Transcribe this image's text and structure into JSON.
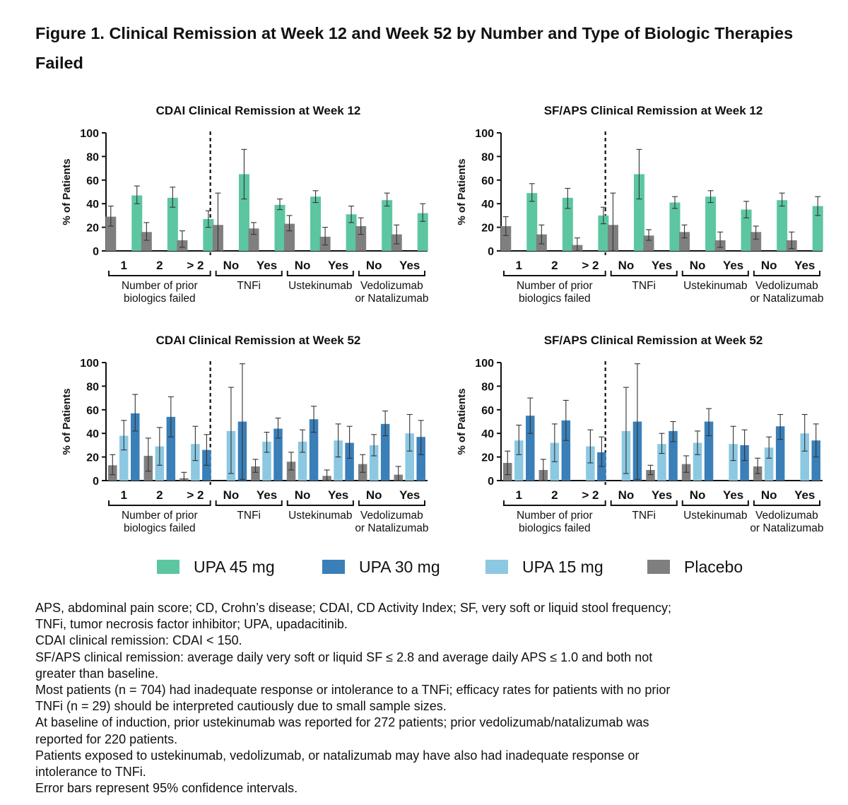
{
  "figure_title": "Figure 1. Clinical Remission at Week 12 and Week 52 by Number and Type of Biologic Therapies Failed",
  "colors": {
    "UPA 45 mg": "#5cc6a0",
    "UPA 30 mg": "#3a7fb8",
    "UPA 15 mg": "#8cc8e2",
    "Placebo": "#7f7f7f"
  },
  "legend": [
    "UPA 45 mg",
    "UPA 30 mg",
    "UPA 15 mg",
    "Placebo"
  ],
  "footnotes": [
    "APS, abdominal pain score; CD, Crohn’s disease; CDAI, CD Activity Index; SF, very soft or liquid stool frequency;",
    "TNFi, tumor necrosis factor inhibitor; UPA, upadacitinib.",
    "CDAI clinical remission: CDAI < 150.",
    "SF/APS clinical remission: average daily very soft or liquid SF ≤ 2.8 and average daily APS ≤ 1.0 and both not",
    "greater than baseline.",
    "Most patients (n = 704) had inadequate response or intolerance to a TNFi; efficacy rates for patients with no prior",
    "TNFi (n = 29) should be interpreted cautiously due to small sample sizes.",
    "At baseline of induction, prior ustekinumab was reported for 272 patients; prior vedolizumab/natalizumab was",
    "reported for 220 patients.",
    "Patients exposed to ustekinumab, vedolizumab, or natalizumab may have also had inadequate response or",
    "intolerance to TNFi.",
    "Error bars represent 95% confidence intervals."
  ],
  "chart_data": [
    {
      "type": "bar",
      "title": "CDAI Clinical Remission at Week 12",
      "ylabel": "% of Patients",
      "ylim": [
        0,
        100
      ],
      "yticks": [
        0,
        20,
        40,
        60,
        80,
        100
      ],
      "categories": [
        "1",
        "2",
        "> 2",
        "No",
        "Yes",
        "No",
        "Yes",
        "No",
        "Yes"
      ],
      "groups": [
        {
          "label": "Number of prior biologics failed",
          "lines": [
            "Number of prior",
            "biologics failed"
          ],
          "n": 3
        },
        {
          "label": "TNFi",
          "lines": [
            "TNFi"
          ],
          "n": 2
        },
        {
          "label": "Ustekinumab",
          "lines": [
            "Ustekinumab"
          ],
          "n": 2
        },
        {
          "label": "Vedolizumab or Natalizumab",
          "lines": [
            "Vedolizumab",
            "or Natalizumab"
          ],
          "n": 2
        }
      ],
      "series": [
        {
          "name": "Placebo",
          "values": [
            29,
            16,
            9,
            22,
            19,
            23,
            12,
            21,
            14
          ],
          "ci": [
            [
              21,
              38
            ],
            [
              9,
              24
            ],
            [
              3,
              17
            ],
            [
              0,
              49
            ],
            [
              14,
              24
            ],
            [
              17,
              30
            ],
            [
              5,
              20
            ],
            [
              14,
              28
            ],
            [
              6,
              22
            ]
          ]
        },
        {
          "name": "UPA 45 mg",
          "values": [
            47,
            45,
            27,
            65,
            39,
            46,
            31,
            43,
            32
          ],
          "ci": [
            [
              40,
              55
            ],
            [
              37,
              54
            ],
            [
              20,
              34
            ],
            [
              44,
              86
            ],
            [
              35,
              44
            ],
            [
              41,
              51
            ],
            [
              24,
              38
            ],
            [
              38,
              49
            ],
            [
              25,
              40
            ]
          ]
        }
      ]
    },
    {
      "type": "bar",
      "title": "SF/APS Clinical Remission at Week 12",
      "ylabel": "% of Patients",
      "ylim": [
        0,
        100
      ],
      "yticks": [
        0,
        20,
        40,
        60,
        80,
        100
      ],
      "categories": [
        "1",
        "2",
        "> 2",
        "No",
        "Yes",
        "No",
        "Yes",
        "No",
        "Yes"
      ],
      "groups": [
        {
          "label": "Number of prior biologics failed",
          "lines": [
            "Number of prior",
            "biologics failed"
          ],
          "n": 3
        },
        {
          "label": "TNFi",
          "lines": [
            "TNFi"
          ],
          "n": 2
        },
        {
          "label": "Ustekinumab",
          "lines": [
            "Ustekinumab"
          ],
          "n": 2
        },
        {
          "label": "Vedolizumab or Natalizumab",
          "lines": [
            "Vedolizumab",
            "or Natalizumab"
          ],
          "n": 2
        }
      ],
      "series": [
        {
          "name": "Placebo",
          "values": [
            21,
            14,
            5,
            22,
            13,
            16,
            9,
            16,
            9
          ],
          "ci": [
            [
              13,
              29
            ],
            [
              6,
              22
            ],
            [
              0,
              11
            ],
            [
              0,
              49
            ],
            [
              9,
              18
            ],
            [
              11,
              22
            ],
            [
              3,
              16
            ],
            [
              10,
              21
            ],
            [
              2,
              16
            ]
          ]
        },
        {
          "name": "UPA 45 mg",
          "values": [
            49,
            45,
            30,
            65,
            41,
            46,
            35,
            43,
            38
          ],
          "ci": [
            [
              42,
              57
            ],
            [
              36,
              53
            ],
            [
              23,
              37
            ],
            [
              44,
              86
            ],
            [
              36,
              46
            ],
            [
              41,
              51
            ],
            [
              28,
              42
            ],
            [
              38,
              49
            ],
            [
              30,
              46
            ]
          ]
        }
      ]
    },
    {
      "type": "bar",
      "title": "CDAI Clinical Remission at Week 52",
      "ylabel": "% of Patients",
      "ylim": [
        0,
        100
      ],
      "yticks": [
        0,
        20,
        40,
        60,
        80,
        100
      ],
      "categories": [
        "1",
        "2",
        "> 2",
        "No",
        "Yes",
        "No",
        "Yes",
        "No",
        "Yes"
      ],
      "groups": [
        {
          "label": "Number of prior biologics failed",
          "lines": [
            "Number of prior",
            "biologics failed"
          ],
          "n": 3
        },
        {
          "label": "TNFi",
          "lines": [
            "TNFi"
          ],
          "n": 2
        },
        {
          "label": "Ustekinumab",
          "lines": [
            "Ustekinumab"
          ],
          "n": 2
        },
        {
          "label": "Vedolizumab or Natalizumab",
          "lines": [
            "Vedolizumab",
            "or Natalizumab"
          ],
          "n": 2
        }
      ],
      "series": [
        {
          "name": "Placebo",
          "values": [
            13,
            21,
            2,
            0,
            12,
            16,
            4,
            14,
            5
          ],
          "ci": [
            [
              5,
              22
            ],
            [
              8,
              36
            ],
            [
              0,
              7
            ],
            [
              0,
              0
            ],
            [
              7,
              18
            ],
            [
              9,
              24
            ],
            [
              0,
              9
            ],
            [
              7,
              22
            ],
            [
              0,
              12
            ]
          ]
        },
        {
          "name": "UPA 15 mg",
          "values": [
            38,
            29,
            31,
            42,
            33,
            33,
            34,
            30,
            40
          ],
          "ci": [
            [
              26,
              51
            ],
            [
              13,
              45
            ],
            [
              17,
              46
            ],
            [
              6,
              79
            ],
            [
              24,
              41
            ],
            [
              24,
              43
            ],
            [
              20,
              48
            ],
            [
              21,
              39
            ],
            [
              25,
              56
            ]
          ]
        },
        {
          "name": "UPA 30 mg",
          "values": [
            57,
            54,
            26,
            50,
            44,
            52,
            32,
            48,
            37
          ],
          "ci": [
            [
              42,
              73
            ],
            [
              37,
              71
            ],
            [
              13,
              39
            ],
            [
              1,
              99
            ],
            [
              36,
              53
            ],
            [
              41,
              63
            ],
            [
              19,
              46
            ],
            [
              38,
              59
            ],
            [
              22,
              51
            ]
          ]
        }
      ]
    },
    {
      "type": "bar",
      "title": "SF/APS Clinical Remission at Week 52",
      "ylabel": "% of Patients",
      "ylim": [
        0,
        100
      ],
      "yticks": [
        0,
        20,
        40,
        60,
        80,
        100
      ],
      "categories": [
        "1",
        "2",
        "> 2",
        "No",
        "Yes",
        "No",
        "Yes",
        "No",
        "Yes"
      ],
      "groups": [
        {
          "label": "Number of prior biologics failed",
          "lines": [
            "Number of prior",
            "biologics failed"
          ],
          "n": 3
        },
        {
          "label": "TNFi",
          "lines": [
            "TNFi"
          ],
          "n": 2
        },
        {
          "label": "Ustekinumab",
          "lines": [
            "Ustekinumab"
          ],
          "n": 2
        },
        {
          "label": "Vedolizumab or Natalizumab",
          "lines": [
            "Vedolizumab",
            "or Natalizumab"
          ],
          "n": 2
        }
      ],
      "series": [
        {
          "name": "Placebo",
          "values": [
            15,
            9,
            0,
            0,
            9,
            14,
            0,
            12,
            0
          ],
          "ci": [
            [
              5,
              25
            ],
            [
              0,
              18
            ],
            [
              0,
              0
            ],
            [
              0,
              0
            ],
            [
              5,
              13
            ],
            [
              7,
              21
            ],
            [
              0,
              0
            ],
            [
              6,
              19
            ],
            [
              0,
              0
            ]
          ]
        },
        {
          "name": "UPA 15 mg",
          "values": [
            34,
            32,
            29,
            42,
            31,
            32,
            31,
            28,
            40
          ],
          "ci": [
            [
              22,
              47
            ],
            [
              16,
              48
            ],
            [
              15,
              43
            ],
            [
              6,
              79
            ],
            [
              23,
              40
            ],
            [
              22,
              42
            ],
            [
              17,
              46
            ],
            [
              19,
              37
            ],
            [
              25,
              56
            ]
          ]
        },
        {
          "name": "UPA 30 mg",
          "values": [
            55,
            51,
            24,
            50,
            42,
            50,
            30,
            46,
            34
          ],
          "ci": [
            [
              40,
              70
            ],
            [
              34,
              68
            ],
            [
              12,
              37
            ],
            [
              1,
              99
            ],
            [
              33,
              50
            ],
            [
              38,
              61
            ],
            [
              17,
              43
            ],
            [
              35,
              56
            ],
            [
              20,
              48
            ]
          ]
        }
      ]
    }
  ]
}
